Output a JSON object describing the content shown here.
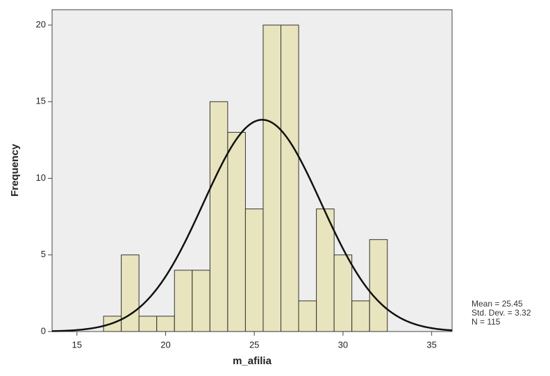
{
  "chart_data": {
    "type": "histogram",
    "x_label": "m_afilia",
    "y_label": "Frequency",
    "bins": [
      16.5,
      17.5,
      18.5,
      19.5,
      20.5,
      21.5,
      22.5,
      23.5,
      24.5,
      25.5,
      26.5,
      27.5,
      28.5,
      29.5,
      30.5,
      31.5,
      32.5
    ],
    "counts": [
      1,
      5,
      1,
      1,
      4,
      4,
      15,
      13,
      8,
      20,
      20,
      2,
      8,
      5,
      2,
      6
    ],
    "color": "#e6e2b4",
    "curve_color": "#111111",
    "xlim": [
      13.6,
      36.15
    ],
    "ylim": [
      0,
      21
    ],
    "xticks": [
      15,
      20,
      25,
      30,
      35
    ],
    "yticks": [
      0,
      5,
      10,
      15,
      20
    ],
    "stats": [
      {
        "value": 25.45,
        "label": "Mean = 25.45"
      },
      {
        "value": 3.32,
        "label": "Std. Dev. = 3.32"
      },
      {
        "value": 115,
        "label": "N = 115"
      }
    ]
  }
}
